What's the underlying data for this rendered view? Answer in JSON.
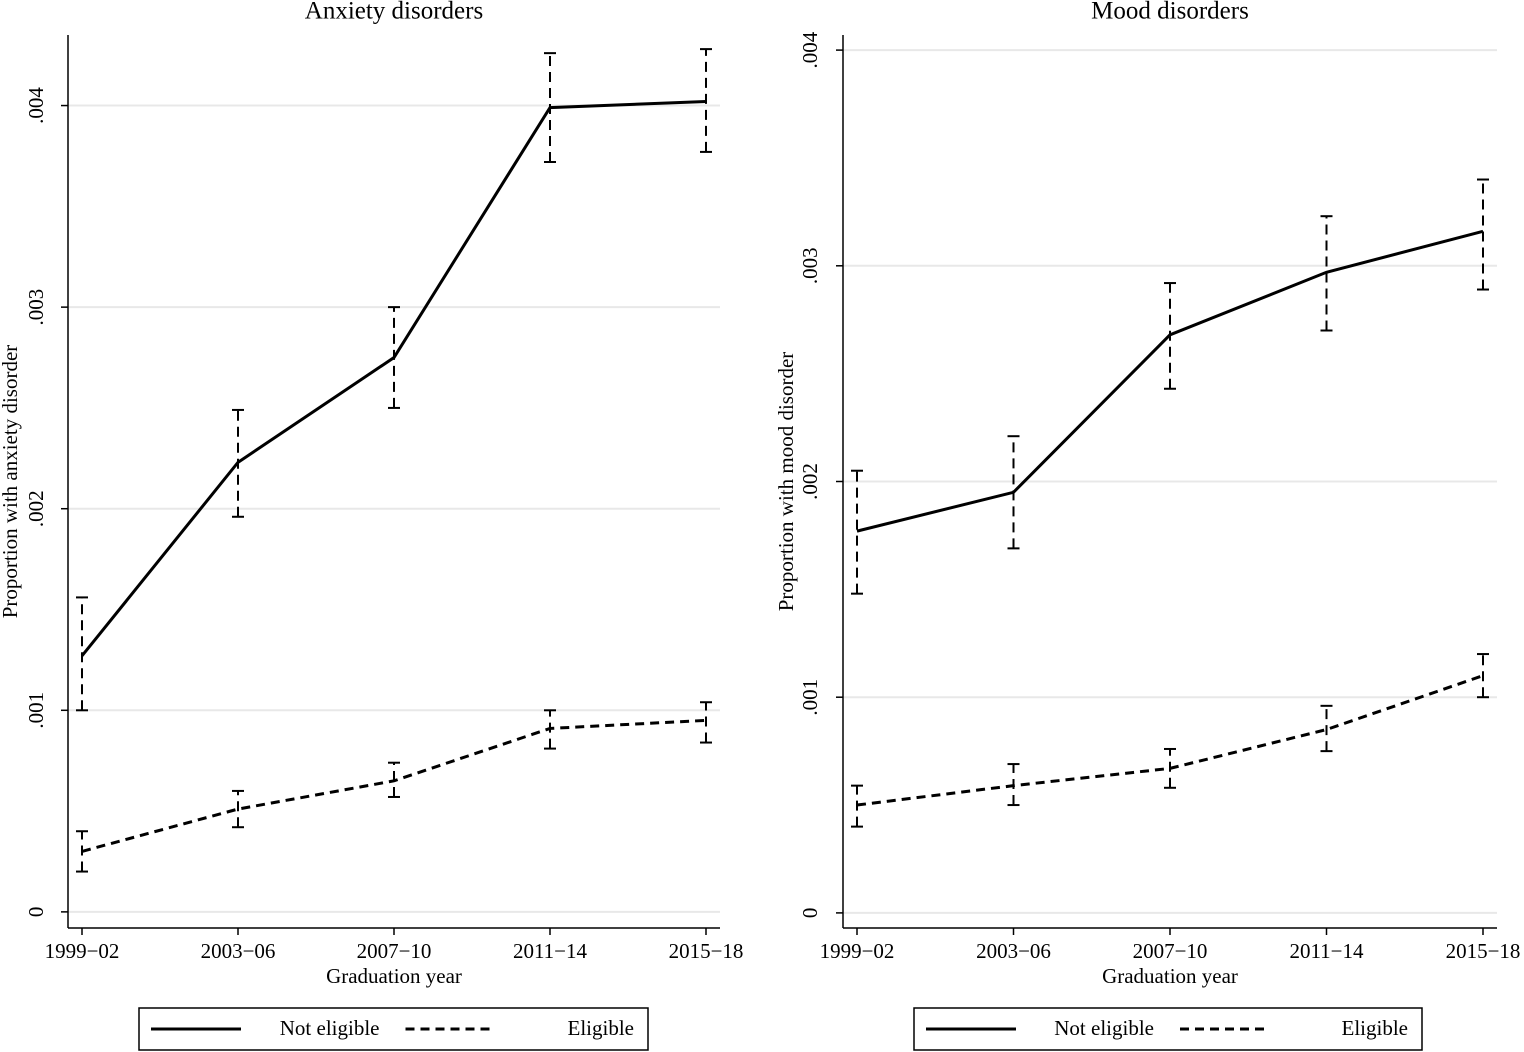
{
  "chart_data": [
    {
      "type": "line",
      "title": "Anxiety disorders",
      "xlabel": "Graduation year",
      "ylabel": "Proportion with anxiety disorder",
      "categories": [
        "1999−02",
        "2003−06",
        "2007−10",
        "2011−14",
        "2015−18"
      ],
      "series": [
        {
          "name": "Not eligible",
          "color": "#000000",
          "line_style": "solid",
          "values": [
            0.00127,
            0.00223,
            0.00275,
            0.00399,
            0.00402
          ],
          "ci_low": [
            0.001,
            0.00196,
            0.0025,
            0.00372,
            0.00377
          ],
          "ci_high": [
            0.00156,
            0.00249,
            0.003,
            0.00426,
            0.00428
          ]
        },
        {
          "name": "Eligible",
          "color": "#000000",
          "line_style": "dashed",
          "values": [
            0.0003,
            0.00051,
            0.00065,
            0.00091,
            0.00095
          ],
          "ci_low": [
            0.0002,
            0.00042,
            0.00057,
            0.00081,
            0.00084
          ],
          "ci_high": [
            0.0004,
            0.0006,
            0.00074,
            0.001,
            0.00104
          ]
        }
      ],
      "ylim": [
        -8e-05,
        0.00435
      ],
      "yticks": [
        0,
        {
          "value": 0.001,
          "label": ".001"
        },
        {
          "value": 0.002,
          "label": ".002"
        },
        {
          "value": 0.003,
          "label": ".003"
        },
        {
          "value": 0.004,
          "label": ".004"
        }
      ],
      "grid": true,
      "legend": "bottom"
    },
    {
      "type": "line",
      "title": "Mood disorders",
      "xlabel": "Graduation year",
      "ylabel": "Proportion with mood disorder",
      "categories": [
        "1999−02",
        "2003−06",
        "2007−10",
        "2011−14",
        "2015−18"
      ],
      "series": [
        {
          "name": "Not eligible",
          "color": "#000000",
          "line_style": "solid",
          "values": [
            0.00177,
            0.00195,
            0.00268,
            0.00297,
            0.00316
          ],
          "ci_low": [
            0.00148,
            0.00169,
            0.00243,
            0.0027,
            0.00289
          ],
          "ci_high": [
            0.00205,
            0.00221,
            0.00292,
            0.00323,
            0.0034
          ]
        },
        {
          "name": "Eligible",
          "color": "#000000",
          "line_style": "dashed",
          "values": [
            0.0005,
            0.00059,
            0.00067,
            0.00085,
            0.0011
          ],
          "ci_low": [
            0.0004,
            0.0005,
            0.00058,
            0.00075,
            0.001
          ],
          "ci_high": [
            0.00059,
            0.00069,
            0.00076,
            0.00096,
            0.0012
          ]
        }
      ],
      "ylim": [
        -7e-05,
        0.00407
      ],
      "yticks": [
        0,
        {
          "value": 0.001,
          "label": ".001"
        },
        {
          "value": 0.002,
          "label": ".002"
        },
        {
          "value": 0.003,
          "label": ".003"
        },
        {
          "value": 0.004,
          "label": ".004"
        }
      ],
      "grid": true,
      "legend": "bottom"
    }
  ]
}
